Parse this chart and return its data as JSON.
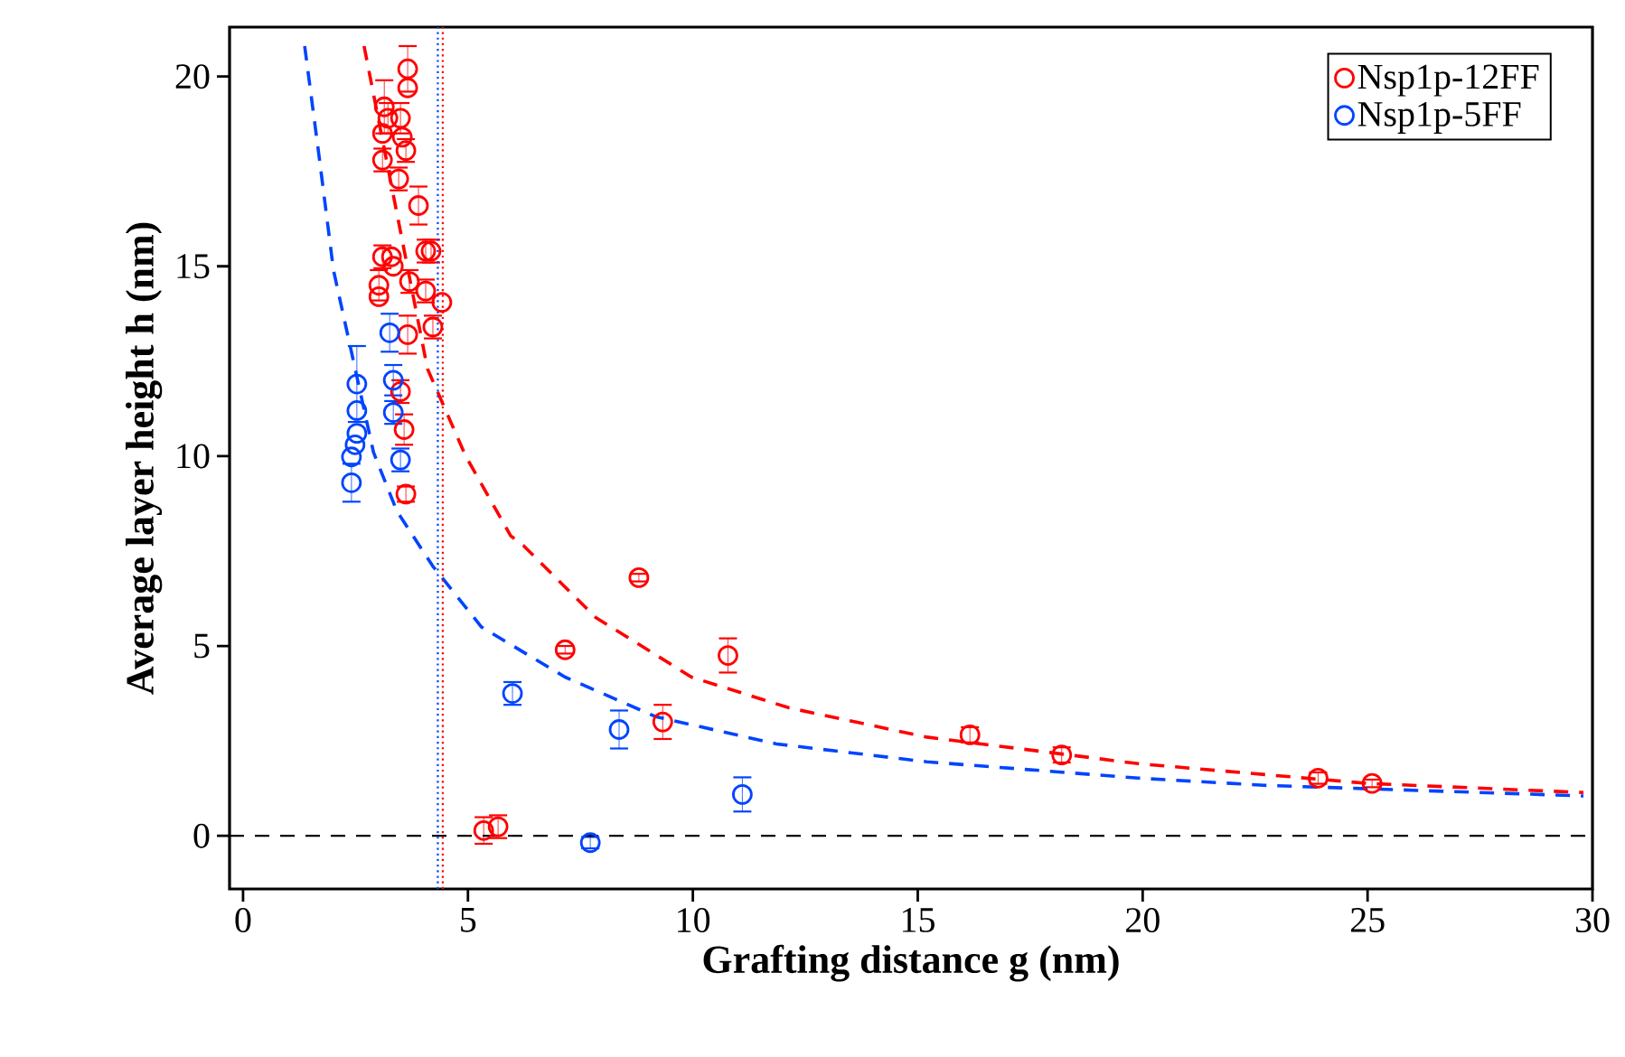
{
  "chart_data": {
    "type": "scatter",
    "xlabel": "Grafting distance g (nm)",
    "ylabel": "Average layer height h (nm)",
    "xlim": [
      -0.3,
      30
    ],
    "ylim": [
      -1.4,
      21.3
    ],
    "xticks": [
      0,
      5,
      10,
      15,
      20,
      25,
      30
    ],
    "yticks": [
      0,
      5,
      10,
      15,
      20
    ],
    "marker": "circle",
    "legend": "top right",
    "series": [
      {
        "name": "Nsp1p-12FF",
        "color": "#ff0000",
        "x": [
          3.66,
          3.66,
          3.14,
          3.22,
          3.5,
          3.1,
          3.54,
          3.1,
          3.62,
          3.46,
          3.9,
          3.1,
          3.3,
          4.06,
          4.18,
          3.02,
          3.34,
          3.7,
          3.02,
          4.06,
          4.42,
          4.22,
          3.66,
          3.5,
          3.58,
          3.62,
          8.8,
          7.16,
          10.78,
          9.33,
          16.16,
          18.2,
          5.35,
          5.67,
          23.9,
          25.1
        ],
        "values": [
          20.2,
          19.7,
          19.2,
          18.9,
          18.9,
          18.5,
          18.4,
          17.8,
          18.05,
          17.3,
          16.6,
          15.25,
          15.25,
          15.4,
          15.4,
          14.5,
          15.0,
          14.6,
          14.2,
          14.35,
          14.05,
          13.4,
          13.2,
          11.7,
          10.7,
          9.0,
          6.8,
          4.9,
          4.75,
          3.0,
          2.66,
          2.13,
          0.14,
          0.24,
          1.52,
          1.38
        ],
        "errors": [
          0.6,
          null,
          0.7,
          0.4,
          0.4,
          null,
          null,
          0.3,
          0.3,
          0.3,
          0.5,
          0.3,
          null,
          0.3,
          0.3,
          0.4,
          null,
          0.3,
          null,
          0.3,
          null,
          0.3,
          0.5,
          0.3,
          0.4,
          0.2,
          0.1,
          0.1,
          0.45,
          0.45,
          0.2,
          0.2,
          0.35,
          0.3,
          0.15,
          0.1
        ]
      },
      {
        "name": "Nsp1p-5FF",
        "color": "#0044ff",
        "x": [
          3.26,
          2.53,
          2.53,
          3.34,
          3.34,
          2.53,
          2.49,
          2.41,
          2.41,
          3.5,
          5.99,
          8.36,
          7.72,
          11.1
        ],
        "values": [
          13.25,
          11.9,
          11.2,
          12.0,
          11.15,
          10.6,
          10.3,
          9.98,
          9.3,
          9.9,
          3.75,
          2.8,
          -0.18,
          1.09
        ],
        "errors": [
          0.5,
          1.0,
          null,
          0.4,
          0.3,
          null,
          null,
          null,
          0.5,
          0.3,
          0.3,
          0.5,
          0.15,
          0.45
        ]
      },
      {
        "type": "line",
        "color": "#ff0000",
        "line_style": "dashed",
        "marker": "none",
        "x": [
          2.69,
          4.1,
          4.95,
          5.95,
          6.23,
          7.84,
          9.97,
          12.14,
          15.2,
          17.9,
          19.9,
          25,
          29.8
        ],
        "values": [
          20.8,
          12.3,
          10.0,
          7.9,
          7.65,
          5.75,
          4.18,
          3.37,
          2.6,
          2.2,
          1.9,
          1.38,
          1.14
        ]
      },
      {
        "type": "line",
        "color": "#0044ff",
        "line_style": "dashed",
        "marker": "none",
        "x": [
          1.37,
          1.69,
          2.01,
          2.9,
          3.42,
          4.22,
          5.3,
          7.16,
          9.17,
          11.86,
          15.2,
          19.9,
          22.7,
          29.8
        ],
        "values": [
          20.8,
          17.9,
          14.9,
          10.1,
          8.55,
          7.1,
          5.5,
          4.18,
          3.14,
          2.42,
          1.95,
          1.52,
          1.33,
          1.05
        ]
      }
    ],
    "ref_lines": [
      {
        "axis": "y",
        "value": 0,
        "color": "#000000",
        "line_style": "dashed"
      },
      {
        "axis": "x",
        "value": 4.33,
        "color": "#0044ff",
        "line_style": "dotted"
      },
      {
        "axis": "x",
        "value": 4.44,
        "color": "#ff0000",
        "line_style": "dotted"
      }
    ]
  }
}
